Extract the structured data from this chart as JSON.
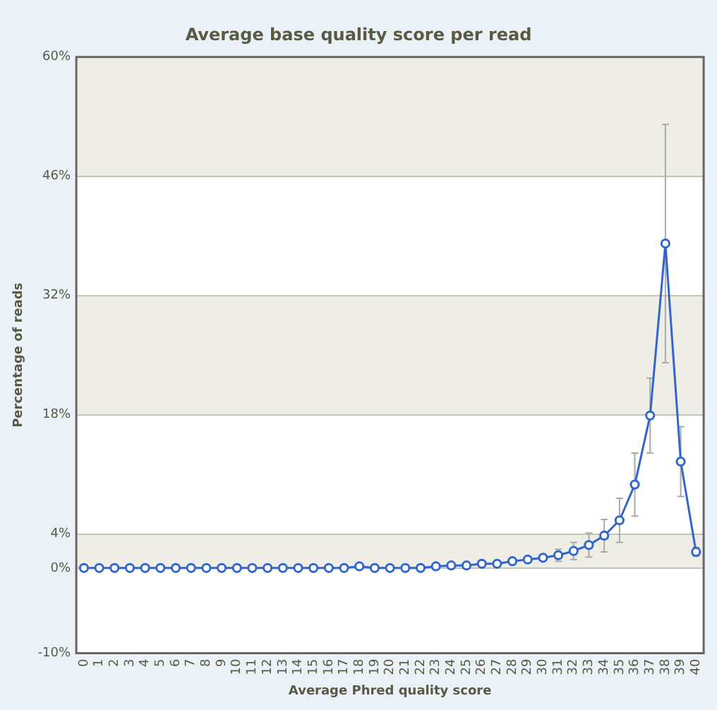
{
  "chart_data": {
    "type": "line",
    "title": "Average base quality score per read",
    "xlabel": "Average Phred quality score",
    "ylabel": "Percentage of reads",
    "categories": [
      "0",
      "1",
      "2",
      "3",
      "4",
      "5",
      "6",
      "7",
      "8",
      "9",
      "10",
      "11",
      "12",
      "13",
      "14",
      "15",
      "16",
      "17",
      "18",
      "19",
      "20",
      "21",
      "22",
      "23",
      "24",
      "25",
      "26",
      "27",
      "28",
      "29",
      "30",
      "31",
      "32",
      "33",
      "34",
      "35",
      "36",
      "37",
      "38",
      "39",
      "40"
    ],
    "series": [
      {
        "color": "#3366cc",
        "values": [
          0,
          0,
          0,
          0,
          0,
          0,
          0,
          0,
          0,
          0,
          0,
          0,
          0,
          0,
          0,
          0,
          0,
          0,
          0.2,
          0,
          0,
          0,
          0,
          0.2,
          0.3,
          0.3,
          0.5,
          0.5,
          0.8,
          1.0,
          1.2,
          1.5,
          2.0,
          2.7,
          3.8,
          5.6,
          9.8,
          17.9,
          38.1,
          12.5,
          1.9
        ],
        "errors": [
          null,
          null,
          null,
          null,
          null,
          null,
          null,
          null,
          null,
          null,
          null,
          null,
          null,
          null,
          null,
          null,
          null,
          null,
          null,
          null,
          null,
          null,
          null,
          null,
          null,
          null,
          null,
          null,
          null,
          null,
          null,
          0.7,
          1.0,
          1.4,
          1.9,
          2.6,
          3.7,
          4.4,
          14,
          4.1,
          0.5
        ]
      }
    ],
    "ylim": [
      -10,
      60
    ],
    "yticks": [
      {
        "value": -10,
        "label": "-10%"
      },
      {
        "value": 0,
        "label": "0%"
      },
      {
        "value": 4,
        "label": "4%"
      },
      {
        "value": 18,
        "label": "18%"
      },
      {
        "value": 32,
        "label": "32%"
      },
      {
        "value": 46,
        "label": "46%"
      },
      {
        "value": 60,
        "label": "60%"
      }
    ],
    "bands": [
      {
        "axis": "y",
        "from": 0,
        "to": 4,
        "color": "#eeede6"
      },
      {
        "axis": "y",
        "from": 18,
        "to": 32,
        "color": "#eeede6"
      },
      {
        "axis": "y",
        "from": 46,
        "to": 60,
        "color": "#eeede6"
      }
    ],
    "grid": "y",
    "legend": false,
    "marker": "circle",
    "line_style": "solid"
  }
}
